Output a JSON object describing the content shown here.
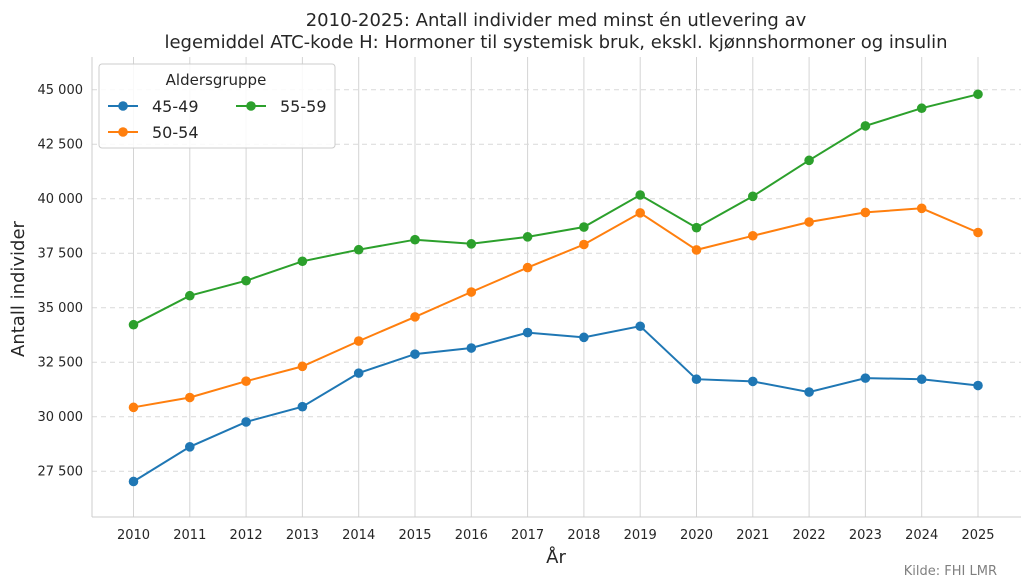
{
  "chart_data": {
    "type": "line",
    "title_line1": "2010-2025: Antall individer med minst én utlevering av",
    "title_line2": "legemiddel ATC-kode H: Hormoner til systemisk bruk, ekskl. kjønnshormoner og insulin",
    "xlabel": "År",
    "ylabel": "Antall individer",
    "x": [
      2010,
      2011,
      2012,
      2013,
      2014,
      2015,
      2016,
      2017,
      2018,
      2019,
      2020,
      2021,
      2022,
      2023,
      2024,
      2025
    ],
    "x_tick_labels": [
      "2010",
      "2011",
      "2012",
      "2013",
      "2014",
      "2015",
      "2016",
      "2017",
      "2018",
      "2019",
      "2020",
      "2021",
      "2022",
      "2023",
      "2024",
      "2025"
    ],
    "ylim": [
      25400,
      46500
    ],
    "y_ticks": [
      27500,
      30000,
      32500,
      35000,
      37500,
      40000,
      42500,
      45000
    ],
    "y_tick_labels": [
      "27 500",
      "30 000",
      "32 500",
      "35 000",
      "37 500",
      "40 000",
      "42 500",
      "45 000"
    ],
    "grid": "y dashed, x solid",
    "legend": {
      "title": "Aldersgruppe",
      "placement": "top-left"
    },
    "series": [
      {
        "name": "45-49",
        "color": "#1f77b4",
        "values": [
          27030,
          28620,
          29760,
          30460,
          32000,
          32870,
          33150,
          33860,
          33640,
          34150,
          31720,
          31620,
          31130,
          31770,
          31720,
          31430
        ]
      },
      {
        "name": "50-54",
        "color": "#ff7f0e",
        "values": [
          30430,
          30880,
          31630,
          32310,
          33470,
          34580,
          35720,
          36840,
          37900,
          39350,
          37650,
          38300,
          38930,
          39370,
          39560,
          38450
        ]
      },
      {
        "name": "55-59",
        "color": "#2ca02c",
        "values": [
          34220,
          35550,
          36240,
          37130,
          37660,
          38120,
          37930,
          38250,
          38700,
          40170,
          38670,
          40110,
          41760,
          43340,
          44150,
          44790
        ]
      }
    ],
    "source": "Kilde: FHI LMR"
  }
}
